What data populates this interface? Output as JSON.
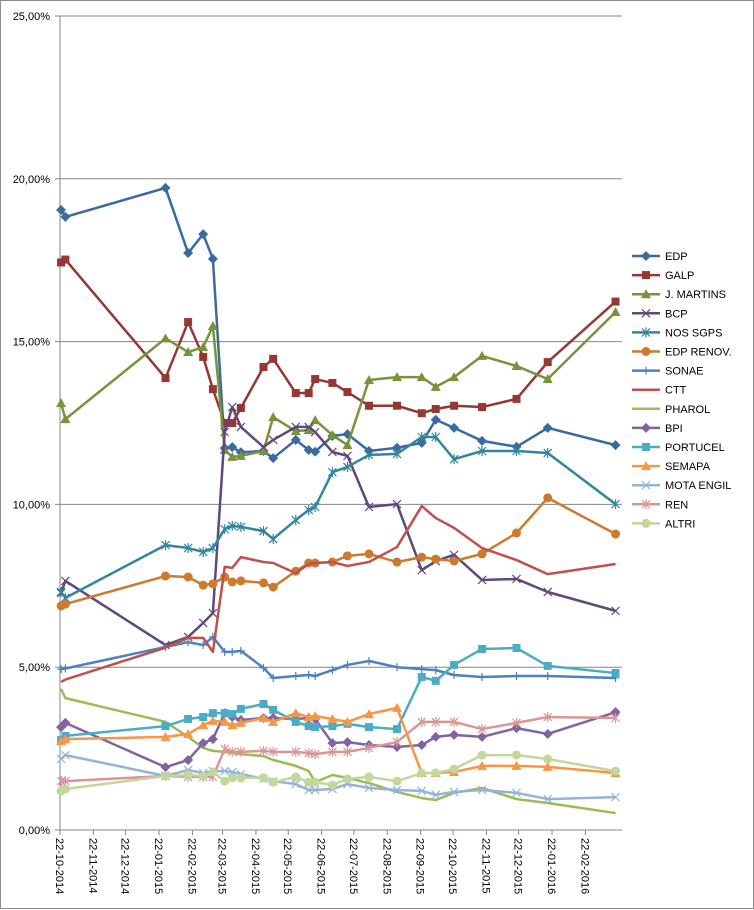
{
  "chart_data": {
    "type": "line",
    "title": "",
    "xlabel": "",
    "ylabel": "",
    "ylim": [
      0,
      25
    ],
    "grid": true,
    "legend_position": "right",
    "y_ticks": [
      0,
      5,
      10,
      15,
      20,
      25
    ],
    "y_tick_labels": [
      "0,00%",
      "5,00%",
      "10,00%",
      "15,00%",
      "20,00%",
      "25,00%"
    ],
    "x_ticks": [
      "2014-10-22",
      "2014-11-22",
      "2014-12-22",
      "2015-01-22",
      "2015-02-22",
      "2015-03-22",
      "2015-04-22",
      "2015-05-22",
      "2015-06-22",
      "2015-07-22",
      "2015-08-22",
      "2015-09-22",
      "2015-10-22",
      "2015-11-22",
      "2015-12-22",
      "2016-01-22",
      "2016-02-22"
    ],
    "x_tick_labels": [
      "22-10-2014",
      "22-11-2014",
      "22-12-2014",
      "22-01-2015",
      "22-02-2015",
      "22-03-2015",
      "22-04-2015",
      "22-05-2015",
      "22-06-2015",
      "22-07-2015",
      "22-08-2015",
      "22-09-2015",
      "22-10-2015",
      "22-11-2015",
      "22-12-2015",
      "22-01-2016",
      "22-02-2016"
    ],
    "x_range": [
      "2014-10-22",
      "2016-03-27"
    ],
    "x": [
      "2014-10-23",
      "2014-10-27",
      "2015-01-28",
      "2015-02-18",
      "2015-03-04",
      "2015-03-13",
      "2015-03-24",
      "2015-03-31",
      "2015-04-08",
      "2015-04-29",
      "2015-05-08",
      "2015-05-29",
      "2015-06-10",
      "2015-06-16",
      "2015-07-02",
      "2015-07-16",
      "2015-08-05",
      "2015-08-31",
      "2015-09-23",
      "2015-10-06",
      "2015-10-23",
      "2015-11-18",
      "2015-12-20",
      "2016-01-18",
      "2016-03-21"
    ],
    "series": [
      {
        "name": "EDP",
        "color": "#3A6AA0",
        "marker": "diamond",
        "values": [
          19.04,
          18.83,
          19.72,
          17.72,
          18.3,
          17.54,
          11.73,
          11.76,
          11.6,
          11.64,
          11.42,
          11.98,
          11.67,
          11.62,
          12.1,
          12.16,
          11.64,
          11.74,
          11.89,
          12.6,
          12.35,
          11.95,
          11.77,
          12.35,
          11.82
        ]
      },
      {
        "name": "GALP",
        "color": "#953735",
        "marker": "square",
        "values": [
          17.43,
          17.52,
          13.88,
          15.6,
          14.53,
          13.54,
          12.5,
          12.5,
          12.96,
          14.22,
          14.47,
          13.42,
          13.42,
          13.85,
          13.73,
          13.45,
          13.03,
          13.03,
          12.8,
          12.93,
          13.03,
          12.99,
          13.24,
          14.37,
          16.23
        ]
      },
      {
        "name": "J. MARTINS",
        "color": "#77933C",
        "marker": "triangle",
        "values": [
          13.11,
          12.62,
          15.1,
          14.68,
          14.83,
          15.48,
          11.67,
          11.46,
          11.49,
          11.64,
          12.68,
          12.25,
          12.28,
          12.59,
          12.13,
          11.82,
          13.82,
          13.91,
          13.91,
          13.61,
          13.91,
          14.56,
          14.25,
          13.85,
          15.91
        ]
      },
      {
        "name": "BCP",
        "color": "#5F497A",
        "marker": "x",
        "values": [
          7.28,
          7.65,
          5.68,
          5.93,
          6.36,
          6.66,
          12.22,
          12.99,
          12.38,
          11.76,
          11.98,
          12.38,
          12.38,
          12.22,
          11.61,
          11.49,
          9.92,
          10.01,
          7.98,
          8.26,
          8.45,
          7.68,
          7.71,
          7.31,
          6.73
        ]
      },
      {
        "name": "NOS SGPS",
        "color": "#31859C",
        "marker": "star",
        "values": [
          7.31,
          7.13,
          8.75,
          8.66,
          8.54,
          8.66,
          9.24,
          9.34,
          9.31,
          9.18,
          8.94,
          9.52,
          9.83,
          9.92,
          10.99,
          11.15,
          11.52,
          11.55,
          12.07,
          12.07,
          11.39,
          11.64,
          11.64,
          11.58,
          10.01
        ]
      },
      {
        "name": "EDP RENOV.",
        "color": "#CC7A2E",
        "marker": "circle",
        "values": [
          6.88,
          6.94,
          7.8,
          7.77,
          7.52,
          7.56,
          7.77,
          7.62,
          7.65,
          7.59,
          7.46,
          7.95,
          8.2,
          8.2,
          8.23,
          8.42,
          8.48,
          8.23,
          8.38,
          8.32,
          8.26,
          8.48,
          9.12,
          10.2,
          9.09
        ]
      },
      {
        "name": "SONAE",
        "color": "#4F81BD",
        "marker": "plus",
        "values": [
          4.94,
          4.96,
          5.62,
          5.77,
          5.68,
          5.93,
          5.47,
          5.47,
          5.5,
          4.98,
          4.67,
          4.73,
          4.76,
          4.73,
          4.91,
          5.07,
          5.19,
          5.0,
          4.94,
          4.91,
          4.76,
          4.7,
          4.73,
          4.73,
          4.67
        ]
      },
      {
        "name": "CTT",
        "color": "#C0504D",
        "marker": "none",
        "values": [
          4.55,
          4.62,
          5.6,
          5.9,
          5.9,
          5.47,
          8.08,
          8.05,
          8.38,
          8.23,
          8.2,
          7.89,
          8.17,
          8.2,
          8.23,
          8.11,
          8.23,
          8.69,
          9.95,
          9.58,
          9.28,
          8.66,
          8.29,
          7.86,
          8.17
        ]
      },
      {
        "name": "PHAROL",
        "color": "#9BBB59",
        "marker": "none",
        "values": [
          4.33,
          4.05,
          3.32,
          2.86,
          2.52,
          2.43,
          2.4,
          2.37,
          2.33,
          2.27,
          2.15,
          1.97,
          1.81,
          1.47,
          1.69,
          1.6,
          1.44,
          1.17,
          0.98,
          0.92,
          1.14,
          1.29,
          0.95,
          0.83,
          0.52
        ]
      },
      {
        "name": "BPI",
        "color": "#8064A2",
        "marker": "diamond",
        "values": [
          3.16,
          3.29,
          1.93,
          2.15,
          2.67,
          2.79,
          3.59,
          3.47,
          3.38,
          3.44,
          3.44,
          3.41,
          3.44,
          3.41,
          2.67,
          2.7,
          2.61,
          2.55,
          2.61,
          2.86,
          2.92,
          2.86,
          3.13,
          2.95,
          3.62
        ]
      },
      {
        "name": "PORTUCEL",
        "color": "#4BACC6",
        "marker": "square",
        "values": [
          2.76,
          2.89,
          3.19,
          3.41,
          3.47,
          3.59,
          3.59,
          3.56,
          3.72,
          3.87,
          3.69,
          3.32,
          3.19,
          3.16,
          3.19,
          3.26,
          3.16,
          3.1,
          4.7,
          4.58,
          5.07,
          5.56,
          5.59,
          5.04,
          4.82
        ]
      },
      {
        "name": "SEMAPA",
        "color": "#F79646",
        "marker": "triangle",
        "values": [
          2.73,
          2.79,
          2.86,
          2.95,
          3.22,
          3.35,
          3.32,
          3.22,
          3.29,
          3.44,
          3.32,
          3.59,
          3.47,
          3.5,
          3.41,
          3.32,
          3.56,
          3.75,
          1.75,
          1.75,
          1.78,
          1.97,
          1.97,
          1.94,
          1.75
        ]
      },
      {
        "name": "MOTA ENGIL",
        "color": "#95B3D7",
        "marker": "x",
        "values": [
          2.18,
          2.3,
          1.66,
          1.84,
          1.75,
          1.81,
          1.81,
          1.78,
          1.72,
          1.57,
          1.5,
          1.41,
          1.23,
          1.23,
          1.26,
          1.41,
          1.29,
          1.23,
          1.2,
          1.08,
          1.17,
          1.23,
          1.14,
          0.95,
          1.01
        ]
      },
      {
        "name": "REN",
        "color": "#D99694",
        "marker": "star",
        "values": [
          1.5,
          1.5,
          1.66,
          1.63,
          1.63,
          1.63,
          2.49,
          2.4,
          2.4,
          2.43,
          2.4,
          2.4,
          2.36,
          2.33,
          2.4,
          2.4,
          2.52,
          2.7,
          3.32,
          3.32,
          3.32,
          3.1,
          3.29,
          3.47,
          3.44
        ]
      },
      {
        "name": "ALTRI",
        "color": "#C3D69B",
        "marker": "circle",
        "values": [
          1.2,
          1.26,
          1.66,
          1.69,
          1.66,
          1.78,
          1.5,
          1.6,
          1.6,
          1.6,
          1.47,
          1.63,
          1.47,
          1.47,
          1.38,
          1.57,
          1.63,
          1.5,
          1.75,
          1.75,
          1.87,
          2.3,
          2.3,
          2.18,
          1.81
        ]
      }
    ]
  }
}
